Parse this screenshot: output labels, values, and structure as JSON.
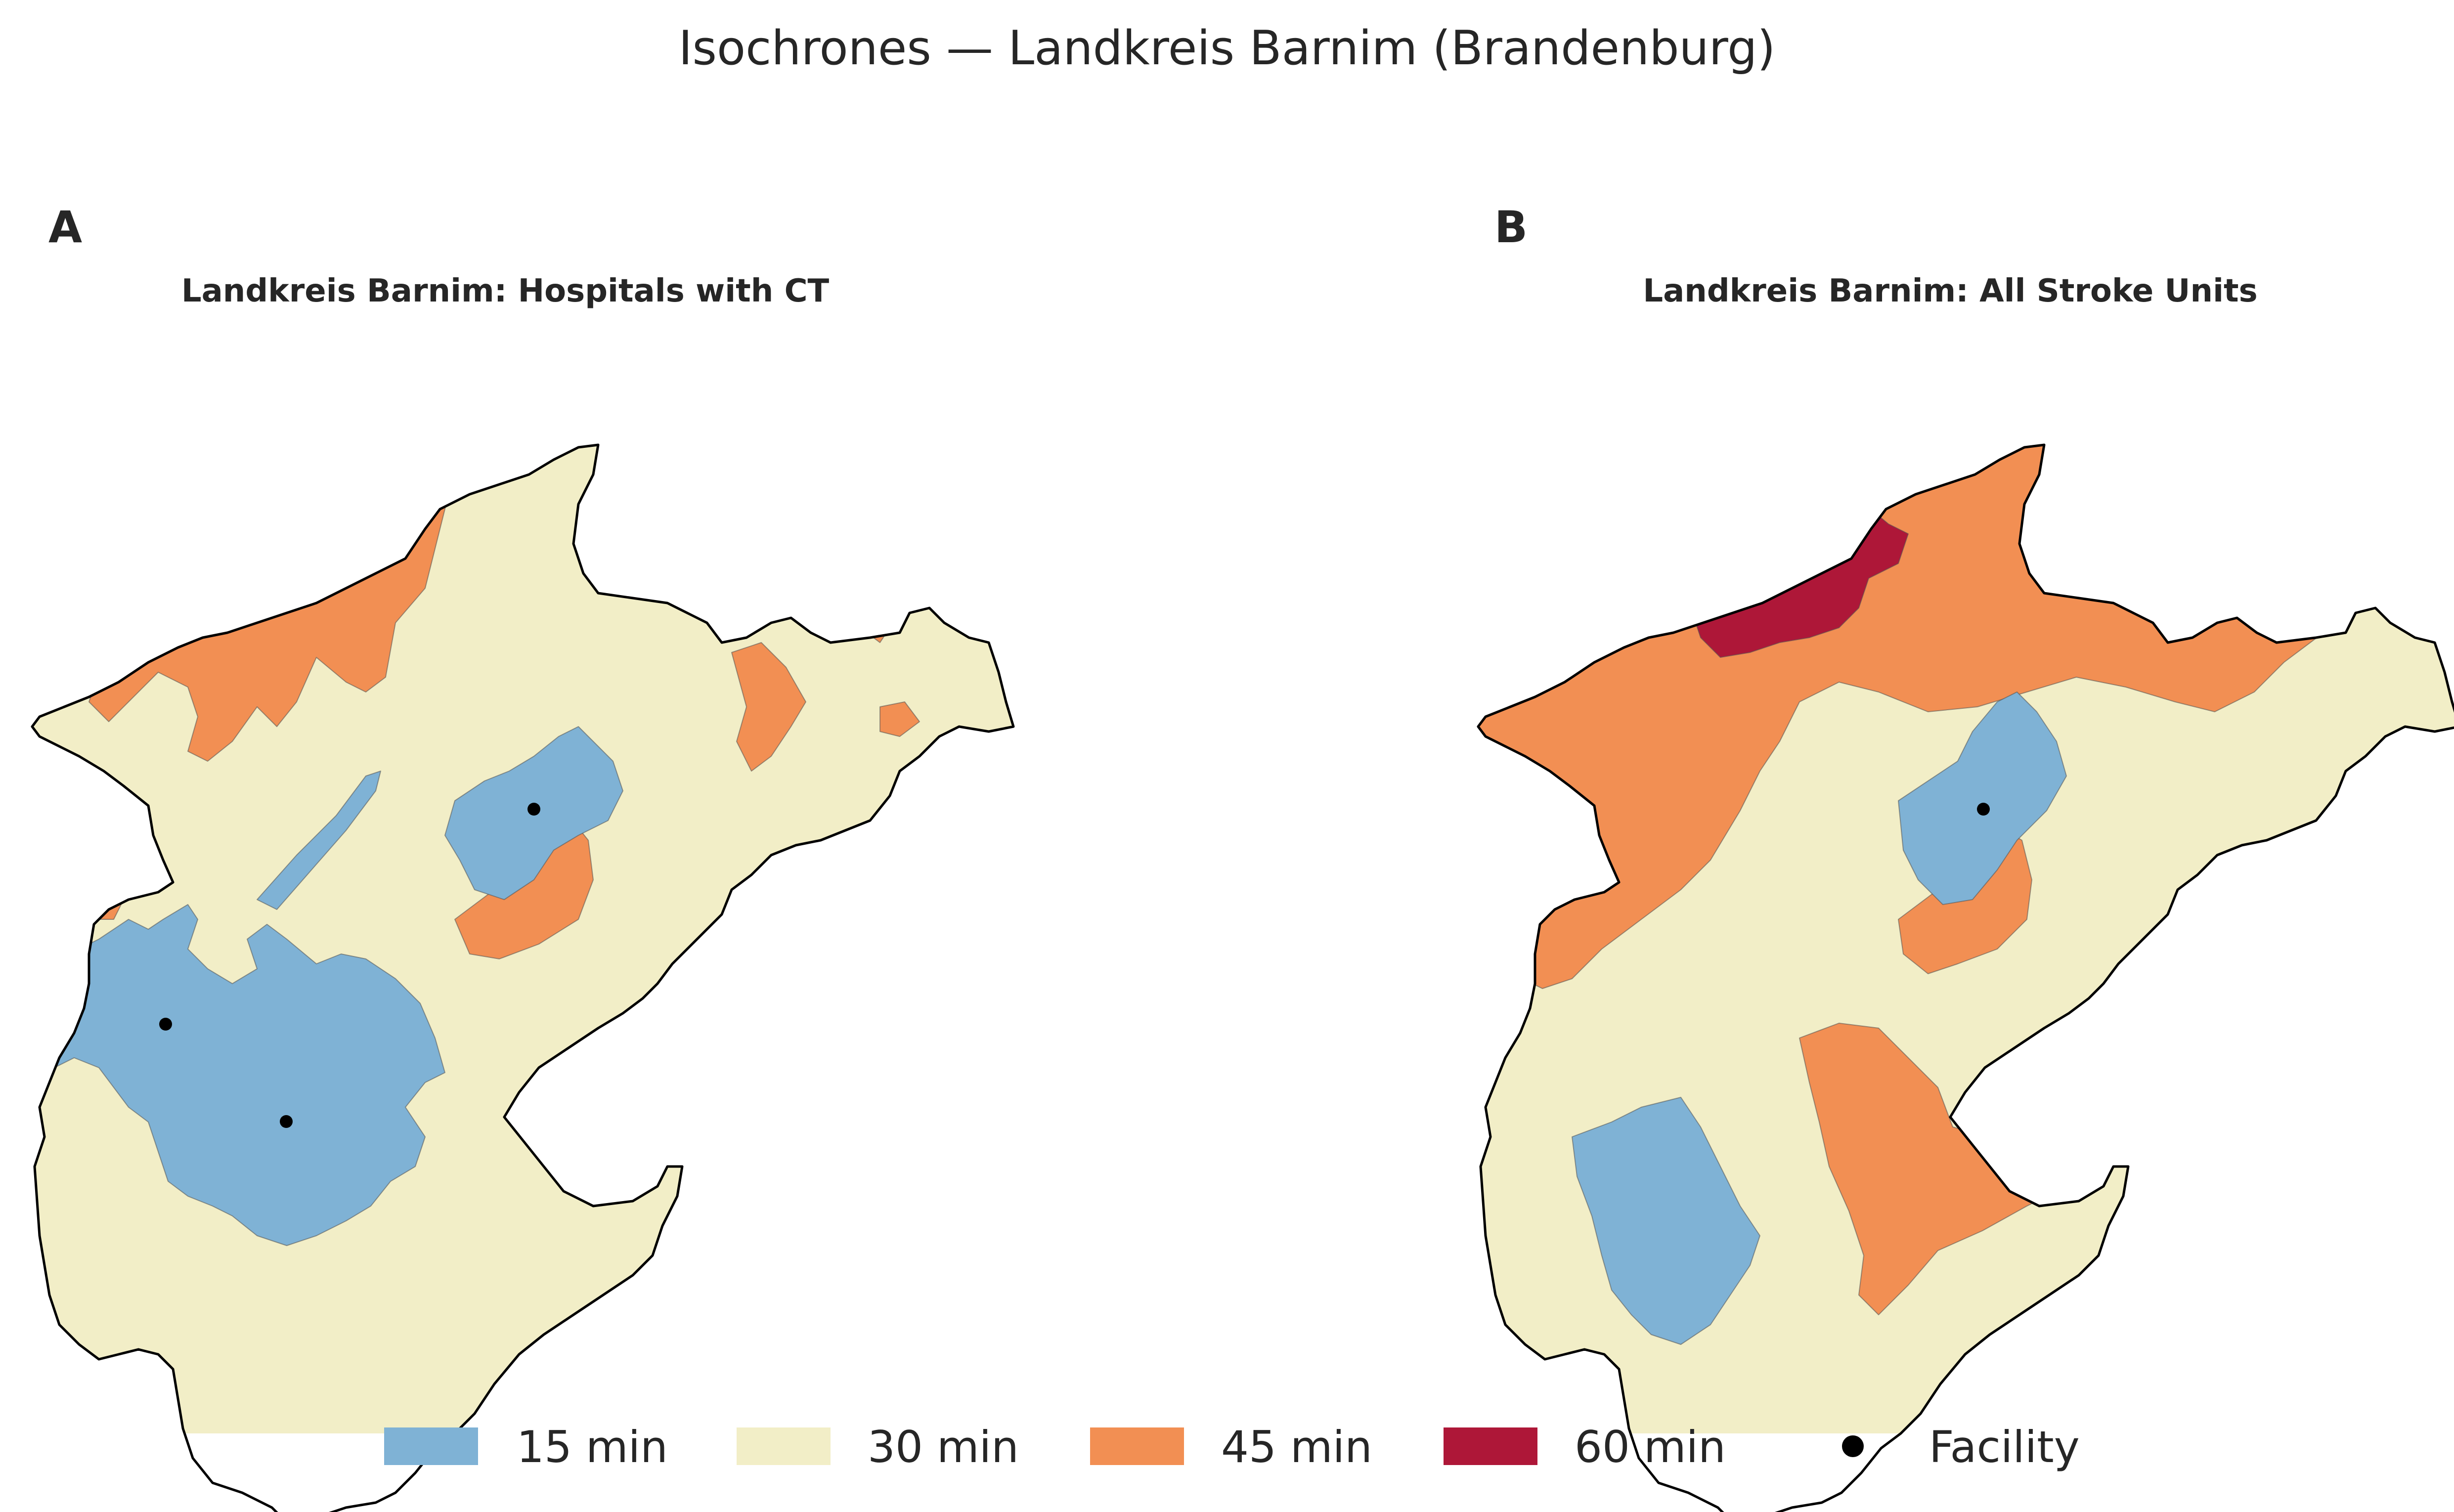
{
  "figure": {
    "title": "Isochrones — Landkreis Barnim (Brandenburg)"
  },
  "panels": [
    {
      "letter": "A",
      "subtitle": "Landkreis Barnim: Hospitals with CT"
    },
    {
      "letter": "B",
      "subtitle": "Landkreis Barnim: All Stroke Units"
    }
  ],
  "legend": [
    {
      "label": "15 min",
      "color": "#7fb2d5",
      "kind": "patch"
    },
    {
      "label": "30 min",
      "color": "#f2eec7",
      "kind": "patch"
    },
    {
      "label": "45 min",
      "color": "#f28f53",
      "kind": "patch"
    },
    {
      "label": "60 min",
      "color": "#ae1738",
      "kind": "patch"
    },
    {
      "label": "Facility",
      "color": "#000000",
      "kind": "marker"
    }
  ],
  "colors": {
    "min15": "#7fb2d5",
    "min30": "#f2eec7",
    "min45": "#f28f53",
    "min60": "#ae1738",
    "facility": "#000000",
    "outline": "#000000"
  }
}
